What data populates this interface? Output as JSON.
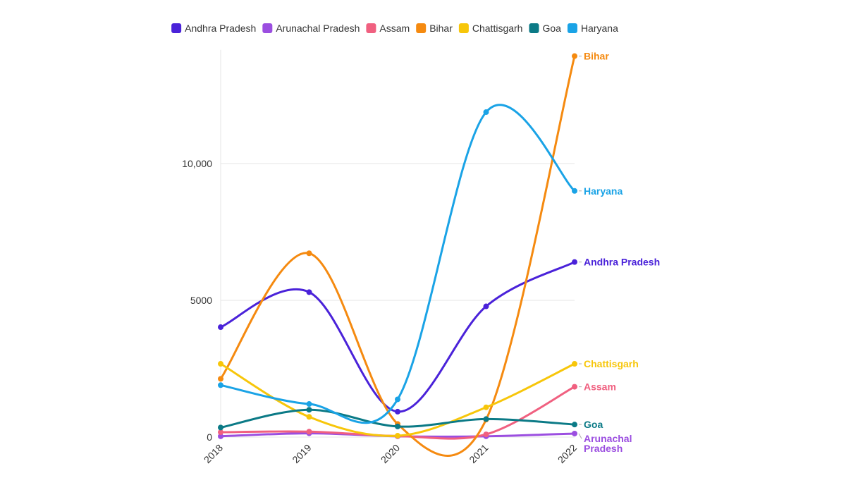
{
  "chart_data": {
    "type": "line",
    "x": [
      "2018",
      "2019",
      "2020",
      "2021",
      "2022"
    ],
    "y_ticks": [
      {
        "value": 0,
        "label": "0"
      },
      {
        "value": 5000,
        "label": "5000"
      },
      {
        "value": 10000,
        "label": "10,000"
      }
    ],
    "ylim": [
      0,
      14000
    ],
    "grid": true,
    "legend_position": "top",
    "curve": "smooth",
    "series": [
      {
        "name": "Andhra Pradesh",
        "color": "#4a22d9",
        "values": [
          4020,
          5300,
          930,
          4780,
          6400
        ],
        "end_label": [
          "Andhra Pradesh"
        ]
      },
      {
        "name": "Arunachal Pradesh",
        "color": "#9b4ee0",
        "values": [
          30,
          140,
          30,
          30,
          130
        ],
        "end_label": [
          "Arunachal",
          "Pradesh"
        ]
      },
      {
        "name": "Assam",
        "color": "#f06080",
        "values": [
          180,
          200,
          40,
          100,
          1840
        ],
        "end_label": [
          "Assam"
        ]
      },
      {
        "name": "Bihar",
        "color": "#f58a10",
        "values": [
          2130,
          6720,
          480,
          640,
          13930
        ],
        "end_label": [
          "Bihar"
        ]
      },
      {
        "name": "Chattisgarh",
        "color": "#f7c60a",
        "values": [
          2680,
          740,
          50,
          1090,
          2680
        ],
        "end_label": [
          "Chattisgarh"
        ]
      },
      {
        "name": "Goa",
        "color": "#0b7a86",
        "values": [
          350,
          1000,
          390,
          660,
          460
        ],
        "end_label": [
          "Goa"
        ]
      },
      {
        "name": "Haryana",
        "color": "#1aa3e6",
        "values": [
          1900,
          1210,
          1380,
          11880,
          9000
        ],
        "end_label": [
          "Haryana"
        ]
      }
    ]
  }
}
